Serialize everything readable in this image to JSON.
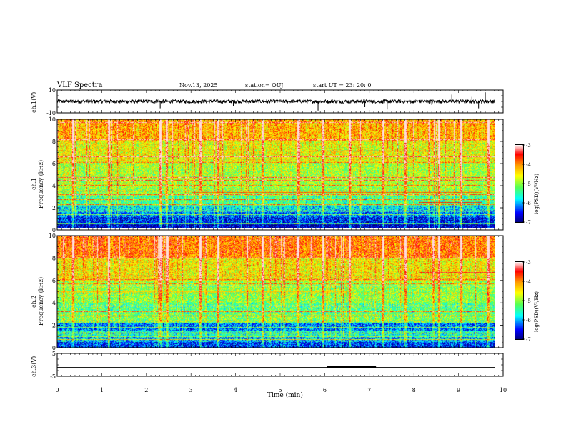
{
  "header": {
    "title": "VLF Spectra",
    "date": "Nov.13, 2025",
    "station": "station= OUJ",
    "start": "start  UT  =   23: 20: 0"
  },
  "chart_data": [
    {
      "type": "line",
      "name": "ch1-waveform",
      "ylabel": "ch.1(V)",
      "ylim": [
        -10,
        10
      ],
      "yticks": [
        "10",
        "-10"
      ],
      "xlim": [
        0,
        10
      ],
      "baseline": 0,
      "noise_amplitude": 1.5,
      "spikes": [
        {
          "t": 2.28,
          "v": 2
        },
        {
          "t": 2.31,
          "v": -6
        },
        {
          "t": 3.95,
          "v": -4
        },
        {
          "t": 5.2,
          "v": 3
        },
        {
          "t": 5.85,
          "v": -8
        },
        {
          "t": 6.9,
          "v": -5
        },
        {
          "t": 7.4,
          "v": -7
        },
        {
          "t": 8.4,
          "v": -3
        },
        {
          "t": 8.85,
          "v": 6
        },
        {
          "t": 9.3,
          "v": 4
        },
        {
          "t": 9.45,
          "v": -6
        },
        {
          "t": 9.6,
          "v": 8
        }
      ]
    },
    {
      "type": "heatmap",
      "name": "ch1-spectrogram",
      "ylabel": "ch.1",
      "ylabel2": "Frequency (kHz)",
      "ylim": [
        0,
        10
      ],
      "yticks": [
        "0",
        "2",
        "4",
        "6",
        "8",
        "10"
      ],
      "xlim": [
        0,
        9.8
      ],
      "zlim": [
        -7,
        -3
      ],
      "colorbar_label": "log(PSD)(V²/Hz)",
      "colorbar_ticks": [
        "-3",
        "-4",
        "-5",
        "-6",
        "-7"
      ],
      "bands": [
        {
          "f": [
            0,
            0.5
          ],
          "z": -6.8
        },
        {
          "f": [
            0.5,
            1.0
          ],
          "z": -6.5
        },
        {
          "f": [
            1.0,
            1.5
          ],
          "z": -6.2
        },
        {
          "f": [
            1.5,
            2.1
          ],
          "z": -5.8
        },
        {
          "f": [
            2.1,
            3.0
          ],
          "z": -5.4
        },
        {
          "f": [
            3.0,
            4.0
          ],
          "z": -5.0
        },
        {
          "f": [
            4.0,
            6.0
          ],
          "z": -4.9
        },
        {
          "f": [
            6.0,
            8.0
          ],
          "z": -4.6
        },
        {
          "f": [
            8.0,
            10.0
          ],
          "z": -4.2
        }
      ],
      "tones_khz": [
        0.4,
        1.6,
        2.2,
        2.6,
        3.1,
        3.4,
        4.4,
        4.7,
        6.6
      ],
      "segment_tones": [
        {
          "f": 7.1,
          "t": [
            5.7,
            9.4
          ],
          "z": -3.3
        },
        {
          "f": 3.3,
          "t": [
            3.0,
            9.5
          ],
          "z": -3.8
        },
        {
          "f": 2.4,
          "t": [
            8.1,
            9.5
          ],
          "z": -3.6
        }
      ],
      "impulsive_columns_min": [
        0.35,
        1.15,
        2.3,
        2.45,
        3.2,
        3.6,
        4.6,
        5.4,
        5.95,
        6.55,
        7.3,
        7.8,
        8.55,
        9.05,
        9.65
      ]
    },
    {
      "type": "heatmap",
      "name": "ch2-spectrogram",
      "ylabel": "ch.2",
      "ylabel2": "Frequency (kHz)",
      "ylim": [
        0,
        10
      ],
      "yticks": [
        "0",
        "2",
        "4",
        "6",
        "8",
        "10"
      ],
      "xlim": [
        0,
        9.8
      ],
      "zlim": [
        -7,
        -3
      ],
      "colorbar_label": "log(PSD)(V²/Hz)",
      "colorbar_ticks": [
        "-3",
        "-4",
        "-5",
        "-6",
        "-7"
      ],
      "bands": [
        {
          "f": [
            0,
            0.5
          ],
          "z": -6.4
        },
        {
          "f": [
            0.5,
            1.0
          ],
          "z": -6.0
        },
        {
          "f": [
            1.0,
            1.5
          ],
          "z": -5.6
        },
        {
          "f": [
            1.5,
            2.2
          ],
          "z": -6.2
        },
        {
          "f": [
            2.2,
            3.0
          ],
          "z": -5.1
        },
        {
          "f": [
            3.0,
            4.0
          ],
          "z": -5.3
        },
        {
          "f": [
            4.0,
            6.0
          ],
          "z": -5.0
        },
        {
          "f": [
            6.0,
            8.0
          ],
          "z": -4.5
        },
        {
          "f": [
            8.0,
            10.0
          ],
          "z": -3.9
        }
      ],
      "tones_khz": [
        0.7,
        1.3,
        2.8,
        3.2,
        3.7,
        5.5
      ],
      "segment_tones": [
        {
          "f": 4.9,
          "t": [
            0.0,
            6.5
          ],
          "z": -4.2
        },
        {
          "f": 5.0,
          "t": [
            0.0,
            6.5
          ],
          "z": -4.3
        },
        {
          "f": 6.7,
          "t": [
            8.1,
            9.8
          ],
          "z": -3.4
        }
      ],
      "impulsive_columns_min": [
        0.35,
        1.15,
        2.3,
        2.45,
        3.2,
        3.6,
        4.6,
        5.4,
        5.95,
        6.55,
        7.3,
        7.8,
        8.55,
        9.05,
        9.65
      ]
    },
    {
      "type": "line",
      "name": "ch3-waveform",
      "ylabel": "ch.3(V)",
      "ylim": [
        -5,
        5
      ],
      "yticks": [
        "5",
        "-5"
      ],
      "xlim": [
        0,
        10
      ],
      "xlabel": "Time  (min)",
      "xticks": [
        "0",
        "1",
        "2",
        "3",
        "4",
        "5",
        "6",
        "7",
        "8",
        "9",
        "10"
      ],
      "baseline": -1.2,
      "thick_segment": {
        "t": [
          6.05,
          7.15
        ],
        "v": -1.0
      }
    }
  ]
}
